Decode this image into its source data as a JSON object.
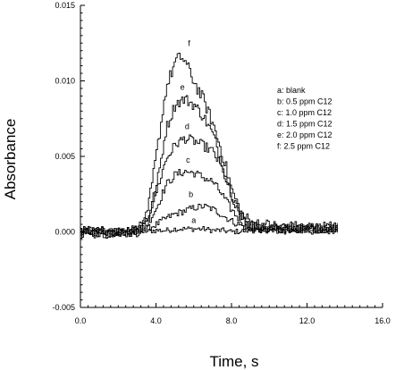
{
  "chart_data": {
    "type": "line",
    "title": "",
    "xlabel": "Time, s",
    "ylabel": "Absorbance",
    "xlim": [
      0.0,
      16.0
    ],
    "ylim": [
      -0.005,
      0.015
    ],
    "xticks": [
      "0.0",
      "4.0",
      "8.0",
      "12.0",
      "16.0"
    ],
    "yticks": [
      "-0.005",
      "0.000",
      "0.005",
      "0.010",
      "0.015"
    ],
    "grid": false,
    "legend_position": "right",
    "legend": [
      "a: blank",
      "b: 0.5 ppm C12",
      "c: 1.0 ppm C12",
      "d: 1.5 ppm C12",
      "e: 2.0 ppm C12",
      "f: 2.5 ppm C12"
    ],
    "series": [
      {
        "name": "a",
        "x": [
          0.0,
          1.0,
          2.0,
          3.0,
          4.0,
          4.5,
          5.0,
          5.5,
          6.0,
          6.5,
          7.0,
          7.5,
          8.0,
          9.0,
          10.0,
          11.0,
          12.0,
          13.0,
          13.6
        ],
        "y": [
          0.0,
          0.0,
          0.0,
          0.0,
          0.0001,
          0.0001,
          0.0002,
          0.0002,
          0.0002,
          0.0002,
          0.0001,
          0.0001,
          0.0,
          0.0001,
          0.0001,
          0.0001,
          0.0001,
          0.0001,
          0.0001
        ]
      },
      {
        "name": "b",
        "x": [
          0.0,
          1.0,
          2.0,
          3.0,
          3.5,
          4.0,
          4.5,
          5.0,
          5.5,
          6.0,
          6.5,
          7.0,
          7.5,
          8.0,
          8.5,
          9.0,
          10.0,
          11.0,
          12.0,
          13.0,
          13.6
        ],
        "y": [
          0.0,
          0.0,
          0.0,
          0.0001,
          0.0002,
          0.0005,
          0.0009,
          0.0012,
          0.0014,
          0.0016,
          0.0017,
          0.0015,
          0.0011,
          0.0007,
          0.0004,
          0.0002,
          0.0002,
          0.0002,
          0.0002,
          0.0002,
          0.0002
        ]
      },
      {
        "name": "c",
        "x": [
          0.0,
          1.0,
          2.0,
          3.0,
          3.5,
          4.0,
          4.5,
          5.0,
          5.5,
          6.0,
          6.5,
          7.0,
          7.5,
          8.0,
          8.5,
          9.0,
          10.0,
          11.0,
          12.0,
          13.0,
          13.6
        ],
        "y": [
          0.0,
          0.0,
          0.0,
          0.0001,
          0.0005,
          0.0016,
          0.0031,
          0.0038,
          0.004,
          0.0039,
          0.0036,
          0.0033,
          0.0024,
          0.0014,
          0.0007,
          0.0003,
          0.0002,
          0.0002,
          0.0002,
          0.0002,
          0.0002
        ]
      },
      {
        "name": "d",
        "x": [
          0.0,
          1.0,
          2.0,
          3.0,
          3.5,
          4.0,
          4.5,
          5.0,
          5.5,
          6.0,
          6.5,
          7.0,
          7.5,
          8.0,
          8.5,
          9.0,
          10.0,
          11.0,
          12.0,
          13.0,
          13.6
        ],
        "y": [
          0.0,
          0.0,
          0.0,
          0.0001,
          0.0008,
          0.0027,
          0.0048,
          0.0058,
          0.0062,
          0.006,
          0.0057,
          0.0053,
          0.0041,
          0.0022,
          0.001,
          0.0004,
          0.0002,
          0.0002,
          0.0002,
          0.0002,
          0.0002
        ]
      },
      {
        "name": "e",
        "x": [
          0.0,
          1.0,
          2.0,
          3.0,
          3.5,
          4.0,
          4.5,
          5.0,
          5.5,
          6.0,
          6.5,
          7.0,
          7.5,
          8.0,
          8.5,
          9.0,
          10.0,
          11.0,
          12.0,
          13.0,
          13.6
        ],
        "y": [
          0.0,
          0.0,
          0.0,
          0.0001,
          0.0008,
          0.003,
          0.0068,
          0.0085,
          0.0088,
          0.0084,
          0.0076,
          0.0064,
          0.0044,
          0.0024,
          0.0009,
          0.0004,
          0.0002,
          0.0002,
          0.0002,
          0.0002,
          0.0002
        ]
      },
      {
        "name": "f",
        "x": [
          0.0,
          1.0,
          2.0,
          3.0,
          3.5,
          4.0,
          4.5,
          5.0,
          5.3,
          5.5,
          6.0,
          6.5,
          7.0,
          7.5,
          8.0,
          8.5,
          9.0,
          10.0,
          11.0,
          12.0,
          13.0,
          13.6
        ],
        "y": [
          0.0,
          0.0,
          0.0,
          0.0001,
          0.001,
          0.0052,
          0.0095,
          0.0113,
          0.0116,
          0.0113,
          0.0099,
          0.0087,
          0.0071,
          0.0051,
          0.0027,
          0.0012,
          0.0006,
          0.0004,
          0.0003,
          0.0003,
          0.0003,
          0.0003
        ]
      }
    ],
    "curve_labels": [
      "a",
      "b",
      "c",
      "d",
      "e",
      "f"
    ]
  }
}
